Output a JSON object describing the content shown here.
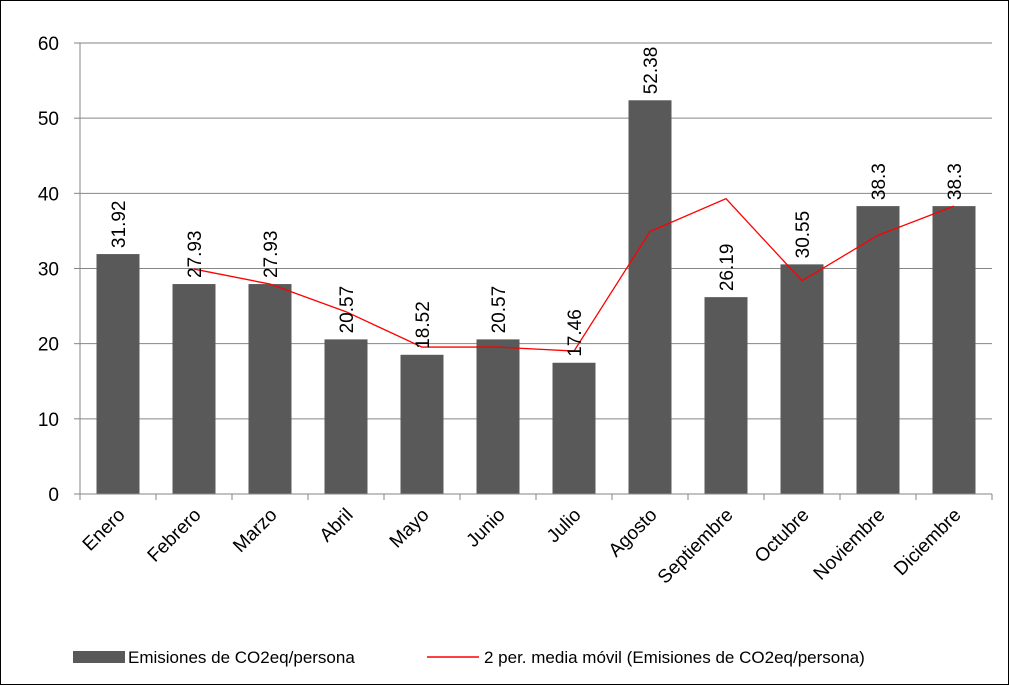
{
  "chart_data": {
    "type": "bar",
    "categories": [
      "Enero",
      "Febrero",
      "Marzo",
      "Abril",
      "Mayo",
      "Junio",
      "Julio",
      "Agosto",
      "Septiembre",
      "Octubre",
      "Noviembre",
      "Diciembre"
    ],
    "series": [
      {
        "name": "Emisiones de CO2eq/persona",
        "type": "bar",
        "color": "#595959",
        "values": [
          31.92,
          27.93,
          27.93,
          20.57,
          18.52,
          20.57,
          17.46,
          52.38,
          26.19,
          30.55,
          38.3,
          38.3
        ],
        "labels": [
          "31.92",
          "27.93",
          "27.93",
          "20.57",
          "18.52",
          "20.57",
          "17.46",
          "52.38",
          "26.19",
          "30.55",
          "38.3",
          "38.3"
        ]
      },
      {
        "name": "2 per. media móvil (Emisiones de CO2eq/persona)",
        "type": "line",
        "color": "#ff0000",
        "values": [
          null,
          29.925,
          27.93,
          24.25,
          19.545,
          19.545,
          19.015,
          34.92,
          39.285,
          28.37,
          34.425,
          38.3
        ]
      }
    ],
    "yticks": [
      "0",
      "10",
      "20",
      "30",
      "40",
      "50",
      "60"
    ],
    "ylim": [
      0,
      60
    ],
    "grid": true,
    "legend": "bottom",
    "title": "",
    "xlabel": "",
    "ylabel": ""
  }
}
